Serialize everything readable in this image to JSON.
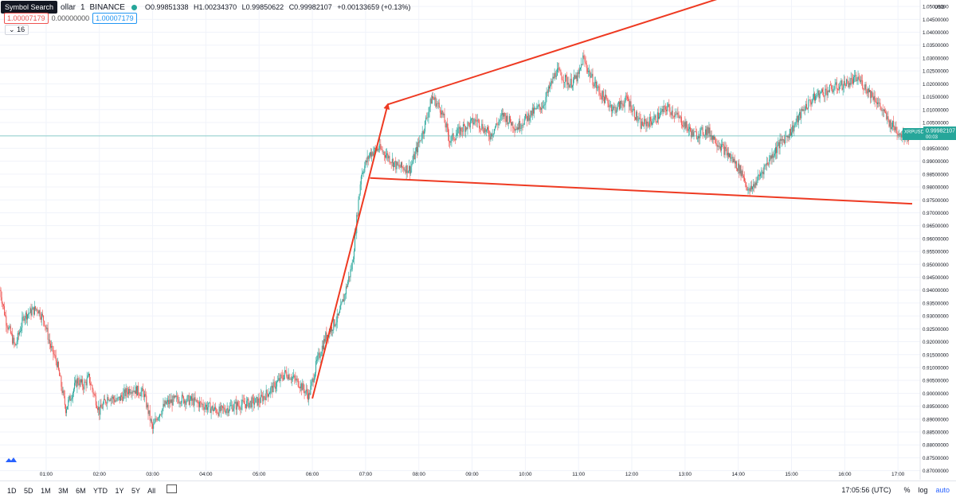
{
  "header": {
    "tooltip": "Symbol Search",
    "symbol_name": "ollar",
    "interval": "1",
    "exchange": "BINANCE",
    "ohlc": {
      "open": "O0.99851338",
      "high": "H1.00234370",
      "low": "L0.99850622",
      "close": "C0.99982107",
      "change": "+0.00133659 (+0.13%)"
    }
  },
  "price_tags": {
    "bid": "1.00007179",
    "spread": "0.00000000",
    "ask": "1.00007179"
  },
  "volume_toggle": "16",
  "currency": "USD",
  "last_price": {
    "symbol": "XRPUSD",
    "value": "0.99982107",
    "countdown": "00:03"
  },
  "bottom": {
    "ranges": [
      "1D",
      "5D",
      "1M",
      "3M",
      "6M",
      "YTD",
      "1Y",
      "5Y",
      "All"
    ],
    "clock": "17:05:56 (UTC)",
    "percent": "%",
    "log": "log",
    "auto": "auto"
  },
  "colors": {
    "up": "#26a69a",
    "down": "#ef5350",
    "drawing": "#ee3a22",
    "grid": "#f0f3fa"
  },
  "chart_data": {
    "type": "line",
    "title": "",
    "xlabel": "",
    "ylabel": "",
    "x_tick_labels": [
      "01:00",
      "02:00",
      "03:00",
      "04:00",
      "05:00",
      "06:00",
      "07:00",
      "08:00",
      "09:00",
      "10:00",
      "11:00",
      "12:00",
      "13:00",
      "14:00",
      "15:00",
      "16:00",
      "17:00"
    ],
    "y_tick_values": [
      0.87,
      0.875,
      0.88,
      0.885,
      0.89,
      0.895,
      0.9,
      0.905,
      0.91,
      0.915,
      0.92,
      0.925,
      0.93,
      0.935,
      0.94,
      0.945,
      0.95,
      0.955,
      0.96,
      0.965,
      0.97,
      0.975,
      0.98,
      0.985,
      0.99,
      0.995,
      1.0,
      1.005,
      1.01,
      1.015,
      1.02,
      1.025,
      1.03,
      1.035,
      1.04,
      1.045,
      1.05
    ],
    "ylim": [
      0.8665,
      1.0525
    ],
    "xlim": [
      "00:08",
      "17:16"
    ],
    "grid": true,
    "series": [
      {
        "x": [
          "00:08",
          "00:15",
          "00:25",
          "00:35",
          "00:50",
          "00:58",
          "01:05",
          "01:12",
          "01:22",
          "01:35",
          "01:42",
          "01:48",
          "02:00",
          "02:10",
          "02:20",
          "02:35",
          "02:50",
          "03:00",
          "03:05",
          "03:15",
          "03:30",
          "03:45",
          "04:00",
          "04:15",
          "04:30",
          "04:45",
          "05:00",
          "05:15",
          "05:30",
          "05:45",
          "05:56",
          "06:05",
          "06:15",
          "06:30",
          "06:45",
          "06:55",
          "07:05",
          "07:15",
          "07:25",
          "07:35",
          "07:50",
          "08:05",
          "08:15",
          "08:25",
          "08:35",
          "08:50",
          "09:05",
          "09:20",
          "09:35",
          "09:50",
          "10:05",
          "10:20",
          "10:35",
          "10:50",
          "11:00",
          "11:05",
          "11:15",
          "11:25",
          "11:40",
          "11:55",
          "12:10",
          "12:25",
          "12:40",
          "12:55",
          "13:10",
          "13:25",
          "13:40",
          "13:55",
          "14:05",
          "14:12",
          "14:20",
          "14:30",
          "14:45",
          "15:00",
          "15:15",
          "15:30",
          "15:45",
          "16:00",
          "16:15",
          "16:25",
          "16:35",
          "16:50",
          "17:05",
          "17:12"
        ],
        "values": [
          0.94,
          0.928,
          0.918,
          0.93,
          0.933,
          0.928,
          0.918,
          0.912,
          0.894,
          0.905,
          0.903,
          0.906,
          0.893,
          0.899,
          0.897,
          0.902,
          0.9,
          0.886,
          0.891,
          0.896,
          0.898,
          0.897,
          0.895,
          0.893,
          0.895,
          0.896,
          0.897,
          0.902,
          0.908,
          0.904,
          0.899,
          0.912,
          0.922,
          0.93,
          0.95,
          0.985,
          0.993,
          0.995,
          0.992,
          0.988,
          0.987,
          1.002,
          1.015,
          1.01,
          0.998,
          1.003,
          1.006,
          1.0,
          1.008,
          1.003,
          1.008,
          1.012,
          1.025,
          1.02,
          1.023,
          1.03,
          1.022,
          1.016,
          1.01,
          1.014,
          1.004,
          1.006,
          1.011,
          1.006,
          1.0,
          1.002,
          0.996,
          0.99,
          0.985,
          0.978,
          0.982,
          0.988,
          0.996,
          1.002,
          1.011,
          1.016,
          1.018,
          1.02,
          1.022,
          1.018,
          1.014,
          1.005,
          1.0,
          0.9998
        ]
      }
    ],
    "annotations": [
      {
        "type": "arrow",
        "from": [
          "06:00",
          0.898
        ],
        "to": [
          "07:25",
          1.012
        ]
      },
      {
        "type": "line",
        "from": [
          "07:25",
          1.012
        ],
        "to": [
          "14:05",
          1.056
        ]
      },
      {
        "type": "line",
        "from": [
          "07:05",
          0.9835
        ],
        "to": [
          "17:16",
          0.9735
        ]
      }
    ]
  }
}
